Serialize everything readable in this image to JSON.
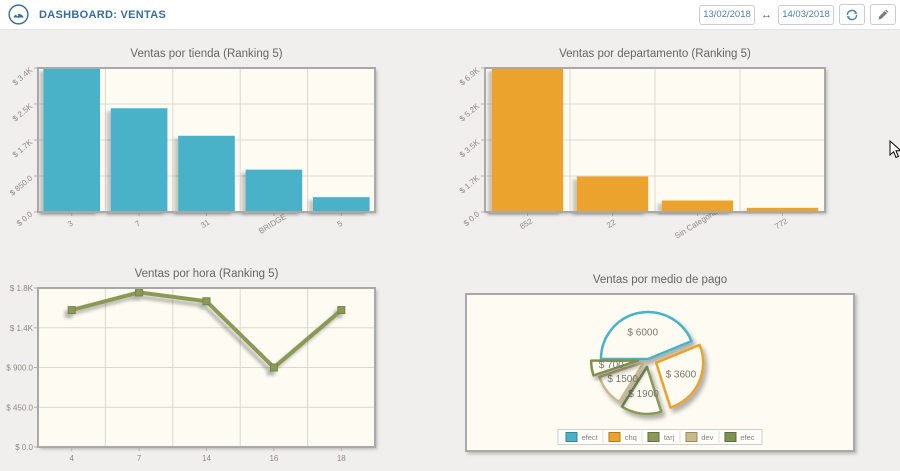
{
  "header": {
    "title": "DASHBOARD: VENTAS",
    "date_from": "13/02/2018",
    "date_to": "14/03/2018",
    "range_arrow": "↔"
  },
  "colors": {
    "accent_blue": "#3a6d9e",
    "date_text": "#4a7fae",
    "teal": "#4ab2c8",
    "orange": "#eca32d",
    "olive": "#8a9a56",
    "tan": "#c9ba88",
    "green": "#7d9150",
    "plot_bg": "#fdfbf2",
    "plot_border": "#a9a9a9",
    "grid": "#ddd8cd",
    "title_text": "#666660",
    "tick_text": "#8f8b84",
    "page_bg": "#f0efed"
  },
  "chart_data": [
    {
      "type": "bar",
      "title": "Ventas por tienda (Ranking 5)",
      "categories": [
        "3",
        "7",
        "31",
        "BRIDGE",
        "5"
      ],
      "values": [
        3400,
        2450,
        1800,
        1000,
        350
      ],
      "ylim": [
        0,
        3400
      ],
      "y_tick_labels": [
        "$ 0.0",
        "$ 850.0",
        "$ 1.7K",
        "$ 2.5K",
        "$ 3.4K"
      ],
      "color": "#4ab2c8",
      "grid": true,
      "legend": "none"
    },
    {
      "type": "bar",
      "title": "Ventas por departamento (Ranking 5)",
      "categories": [
        "852",
        "22",
        "Sin Categoria",
        "772"
      ],
      "values": [
        6900,
        1700,
        550,
        200
      ],
      "ylim": [
        0,
        6900
      ],
      "y_tick_labels": [
        "$ 0.0",
        "$ 1.7K",
        "$ 3.5K",
        "$ 5.2K",
        "$ 6.9K"
      ],
      "color": "#eca32d",
      "grid": true,
      "legend": "none"
    },
    {
      "type": "line",
      "title": "Ventas por hora (Ranking 5)",
      "categories": [
        "4",
        "7",
        "14",
        "16",
        "18"
      ],
      "values": [
        1550,
        1750,
        1650,
        900,
        1550
      ],
      "ylim": [
        0,
        1800
      ],
      "y_tick_labels": [
        "$ 0.0",
        "$ 450.0",
        "$ 900.0",
        "$ 1.4K",
        "$ 1.8K"
      ],
      "color": "#8a9a56",
      "grid": true,
      "legend": "none"
    },
    {
      "type": "pie",
      "title": "Ventas por medio de pago",
      "slices": [
        {
          "label": "efect",
          "value": 6000,
          "display": "$ 6000",
          "color": "#4ab2c8"
        },
        {
          "label": "chq",
          "value": 3600,
          "display": "$ 3600",
          "color": "#eca32d"
        },
        {
          "label": "tarj",
          "value": 1900,
          "display": "$ 1900",
          "color": "#8a9a56"
        },
        {
          "label": "dev",
          "value": 1500,
          "display": "$ 1500",
          "color": "#c9ba88"
        },
        {
          "label": "efec",
          "value": 700,
          "display": "$ 700",
          "color": "#7d9150"
        }
      ],
      "legend": "bottom"
    }
  ]
}
